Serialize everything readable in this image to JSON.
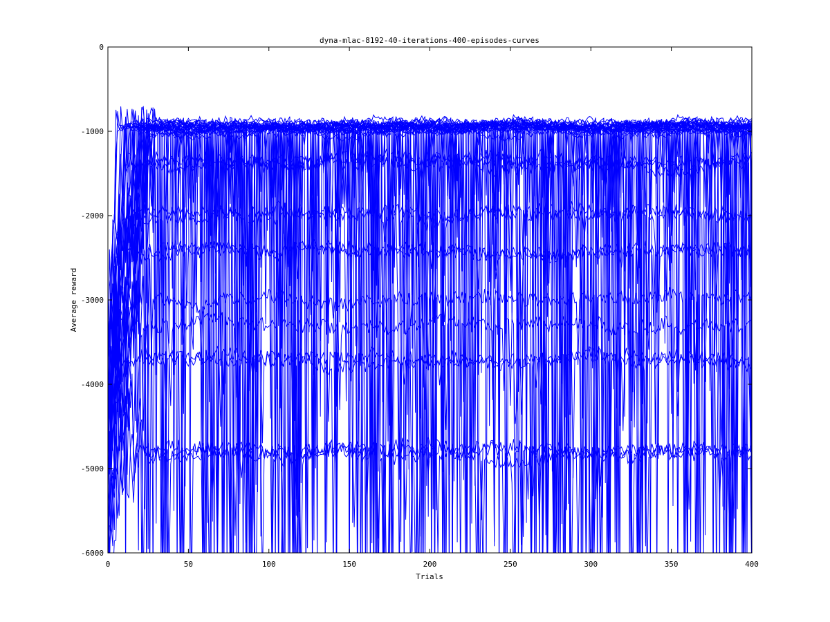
{
  "chart_data": {
    "type": "line",
    "title": "dyna-mlac-8192-40-iterations-400-episodes-curves",
    "xlabel": "Trials",
    "ylabel": "Average reward",
    "xlim": [
      0,
      400
    ],
    "ylim": [
      -6000,
      0
    ],
    "xticks": [
      0,
      50,
      100,
      150,
      200,
      250,
      300,
      350,
      400
    ],
    "yticks": [
      0,
      -1000,
      -2000,
      -3000,
      -4000,
      -5000,
      -6000
    ],
    "grid": false,
    "legend": "none",
    "line_color": "#0000ff",
    "series_count": 40,
    "series_levels": [
      {
        "level": -950,
        "count": 26
      },
      {
        "level": -1350,
        "count": 3
      },
      {
        "level": -2000,
        "count": 2
      },
      {
        "level": -2400,
        "count": 2
      },
      {
        "level": -3000,
        "count": 1
      },
      {
        "level": -3300,
        "count": 1
      },
      {
        "level": -3700,
        "count": 2
      },
      {
        "level": -4800,
        "count": 3
      }
    ]
  }
}
